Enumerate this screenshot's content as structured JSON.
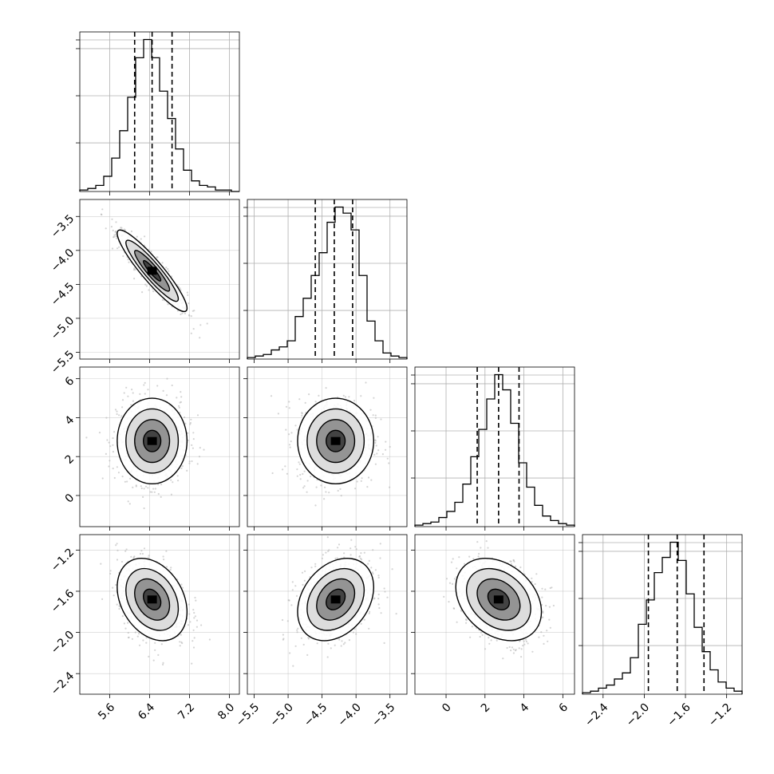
{
  "chart_data": {
    "type": "corner",
    "parameters": [
      {
        "range": [
          5.0,
          8.2
        ],
        "ticks": [
          "5.6",
          "6.4",
          "7.2",
          "8.0"
        ],
        "tick_values": [
          5.6,
          6.4,
          7.2,
          8.0
        ],
        "quantiles": [
          6.1,
          6.45,
          6.85
        ],
        "hist_edges_start": 5.0,
        "hist_edges_step": 0.16,
        "hist_counts": [
          1,
          2,
          4,
          10,
          22,
          40,
          62,
          88,
          100,
          88,
          66,
          48,
          28,
          14,
          7,
          4,
          3,
          1,
          1,
          0
        ]
      },
      {
        "range": [
          -5.6,
          -3.25
        ],
        "ticks": [
          "-5.5",
          "-5.0",
          "-4.5",
          "-4.0",
          "-3.5"
        ],
        "tick_values": [
          -5.5,
          -5.0,
          -4.5,
          -4.0,
          -3.5
        ],
        "quantiles": [
          -4.6,
          -4.32,
          -4.05
        ],
        "hist_edges_start": -5.6,
        "hist_edges_step": 0.1175,
        "hist_counts": [
          1,
          2,
          3,
          6,
          8,
          12,
          28,
          40,
          55,
          70,
          90,
          100,
          96,
          85,
          55,
          25,
          12,
          4,
          2,
          1
        ]
      },
      {
        "range": [
          -1.6,
          6.6
        ],
        "ticks": [
          "0",
          "2",
          "4",
          "6"
        ],
        "tick_values": [
          0,
          2,
          4,
          6
        ],
        "quantiles": [
          1.6,
          2.7,
          3.75
        ],
        "hist_edges_start": -1.6,
        "hist_edges_step": 0.41,
        "hist_counts": [
          1,
          2,
          3,
          6,
          10,
          16,
          28,
          46,
          64,
          84,
          100,
          90,
          68,
          42,
          26,
          14,
          7,
          4,
          2,
          1
        ]
      },
      {
        "range": [
          -2.6,
          -1.05
        ],
        "ticks": [
          "-2.4",
          "-2.0",
          "-1.6",
          "-1.2"
        ],
        "tick_values": [
          -2.4,
          -2.0,
          -1.6,
          -1.2
        ],
        "quantiles": [
          -1.96,
          -1.68,
          -1.42
        ],
        "hist_edges_start": -2.6,
        "hist_edges_step": 0.0775,
        "hist_counts": [
          1,
          2,
          4,
          6,
          10,
          14,
          24,
          46,
          62,
          80,
          90,
          100,
          88,
          66,
          44,
          28,
          16,
          8,
          4,
          2
        ]
      }
    ],
    "pairs": [
      {
        "row": 1,
        "col": 0,
        "center": [
          6.45,
          -4.3
        ],
        "sigma": [
          0.35,
          0.3
        ],
        "rho": -0.92
      },
      {
        "row": 2,
        "col": 0,
        "center": [
          6.45,
          2.8
        ],
        "sigma": [
          0.35,
          1.1
        ],
        "rho": 0.0
      },
      {
        "row": 2,
        "col": 1,
        "center": [
          -4.3,
          2.8
        ],
        "sigma": [
          0.28,
          1.1
        ],
        "rho": 0.0
      },
      {
        "row": 3,
        "col": 0,
        "center": [
          6.45,
          -1.68
        ],
        "sigma": [
          0.35,
          0.2
        ],
        "rho": -0.3
      },
      {
        "row": 3,
        "col": 1,
        "center": [
          -4.3,
          -1.68
        ],
        "sigma": [
          0.28,
          0.2
        ],
        "rho": 0.3
      },
      {
        "row": 3,
        "col": 2,
        "center": [
          2.7,
          -1.68
        ],
        "sigma": [
          1.1,
          0.2
        ],
        "rho": -0.3
      }
    ],
    "contour_levels_sigma": [
      0.5,
      1.0,
      1.5,
      2.0
    ],
    "grid": true,
    "colors": {
      "line": "#000000",
      "points": "#b0b0b0",
      "grid": "#b0b0b0"
    }
  }
}
